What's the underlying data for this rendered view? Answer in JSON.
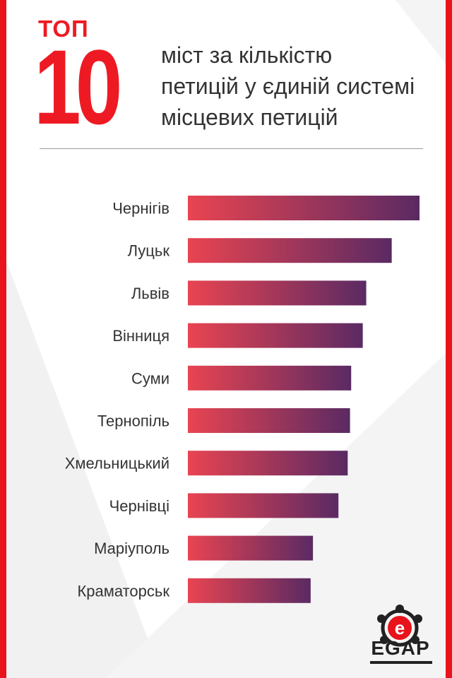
{
  "header": {
    "top_label": "ТОП",
    "big_number": "10",
    "subtitle_lines": [
      "міст за кількістю",
      "петицій у єдиній системі",
      "місцевих петицій"
    ]
  },
  "logo": {
    "text": "EGAP",
    "icon": "egap-people-circle-e-icon"
  },
  "colors": {
    "accent": "#e8131b",
    "bar_gradient_start": "#e94451",
    "bar_gradient_end": "#5a2a63",
    "text": "#333333"
  },
  "chart_data": {
    "type": "bar",
    "orientation": "horizontal",
    "title": "",
    "xlabel": "",
    "ylabel": "",
    "categories": [
      "Чернігів",
      "Луцьк",
      "Львів",
      "Вінниця",
      "Суми",
      "Тернопіль",
      "Хмельницький",
      "Чернівці",
      "Маріуполь",
      "Краматорськ"
    ],
    "values": [
      100,
      88,
      77,
      75.5,
      70.5,
      70,
      69,
      65,
      54,
      53
    ],
    "value_note": "relative bar length, longest bar = 100",
    "xlim": [
      0,
      100
    ],
    "grid": false,
    "legend": "none"
  }
}
